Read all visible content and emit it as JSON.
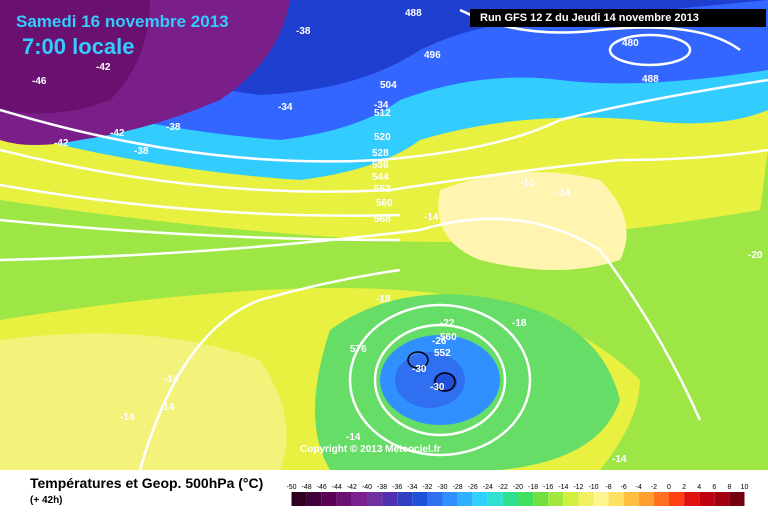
{
  "header": {
    "date": "Samedi 16 novembre 2013",
    "time": "7:00 locale",
    "run": "Run GFS 12 Z du Jeudi 14 novembre 2013"
  },
  "copyright": "Copyright © 2013 Meteociel.fr",
  "footer": {
    "title": "Températures et Geop. 500hPa (°C)",
    "subtitle": "(+ 42h)"
  },
  "colors": {
    "very_cold": "#7a1f8a",
    "cold": "#3366ff",
    "cool": "#33ccff",
    "mild": "#66dd66",
    "warm_low": "#e8f040",
    "warm_high": "#fff5b0"
  },
  "geopotential_labels": [
    "488",
    "496",
    "504",
    "512",
    "520",
    "528",
    "536",
    "544",
    "552",
    "560",
    "568",
    "576",
    "480",
    "488",
    "560",
    "552"
  ],
  "temperature_labels": [
    "-46",
    "-42",
    "-42",
    "-42",
    "-38",
    "-38",
    "-34",
    "-34",
    "-38",
    "-10",
    "-14",
    "-14",
    "-18",
    "-22",
    "-26",
    "-30",
    "-30",
    "-18",
    "-14",
    "-14",
    "-14",
    "-14",
    "-14",
    "-20"
  ],
  "scale": {
    "values": [
      "-50",
      "-48",
      "-46",
      "-44",
      "-42",
      "-40",
      "-38",
      "-36",
      "-34",
      "-32",
      "-30",
      "-28",
      "-26",
      "-24",
      "-22",
      "-20",
      "-18",
      "-16",
      "-14",
      "-12",
      "-10",
      "-8",
      "-6",
      "-4",
      "-2",
      "0",
      "2",
      "4",
      "6",
      "8",
      "10"
    ],
    "colors": [
      "#300020",
      "#40003a",
      "#5a0055",
      "#6a1070",
      "#7a2090",
      "#7030a0",
      "#5030b0",
      "#3040c0",
      "#2050d8",
      "#3070f0",
      "#3090ff",
      "#30b0ff",
      "#30d0ff",
      "#30e0d0",
      "#30e090",
      "#40e060",
      "#70e040",
      "#a0e840",
      "#d0f040",
      "#f0f060",
      "#fff590",
      "#ffe060",
      "#ffc040",
      "#ffa030",
      "#ff7020",
      "#ff4010",
      "#e01010",
      "#c00010",
      "#a00010",
      "#700010"
    ]
  }
}
